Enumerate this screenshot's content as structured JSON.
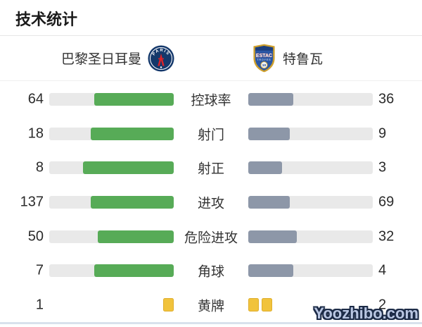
{
  "title": "技术统计",
  "teams": {
    "home": {
      "name": "巴黎圣日耳曼",
      "crest_text_top": "PARIS"
    },
    "away": {
      "name": "特鲁瓦",
      "crest_text_main": "ESTAC",
      "crest_text_sub": "TROYES",
      "crest_number": "10"
    }
  },
  "stats": {
    "rows": [
      {
        "label": "控球率",
        "home": 64,
        "away": 36,
        "display": "bar"
      },
      {
        "label": "射门",
        "home": 18,
        "away": 9,
        "display": "bar"
      },
      {
        "label": "射正",
        "home": 8,
        "away": 3,
        "display": "bar"
      },
      {
        "label": "进攻",
        "home": 137,
        "away": 69,
        "display": "bar"
      },
      {
        "label": "危险进攻",
        "home": 50,
        "away": 32,
        "display": "bar"
      },
      {
        "label": "角球",
        "home": 7,
        "away": 4,
        "display": "bar"
      },
      {
        "label": "黄牌",
        "home": 1,
        "away": 2,
        "display": "cards"
      }
    ]
  },
  "watermark": "Yoozhibo.com",
  "colors": {
    "home_bar": "#57ab57",
    "away_bar": "#8d97a8",
    "track": "#e9e9e9",
    "card_fill": "#f1c33c",
    "card_border": "#dfae2c",
    "watermark_fill": "#b9c6e2",
    "watermark_outline": "#1c2b47"
  },
  "chart_data": {
    "type": "bar",
    "variant": "paired horizontal comparison bars (match stats)",
    "title": "技术统计",
    "categories": [
      "控球率",
      "射门",
      "射正",
      "进攻",
      "危险进攻",
      "角球",
      "黄牌"
    ],
    "series": [
      {
        "name": "巴黎圣日耳曼",
        "color": "#57ab57",
        "values": [
          64,
          18,
          8,
          137,
          50,
          7,
          1
        ]
      },
      {
        "name": "特鲁瓦",
        "color": "#8d97a8",
        "values": [
          36,
          9,
          3,
          69,
          32,
          4,
          2
        ]
      }
    ],
    "legend_position": "top (team names with crests)",
    "notes": "Each bar fill length = value / (home+away); home bars fill right-to-left (inner-anchored), away bars fill left-to-right; 黄牌 (yellow cards) row rendered as yellow card icons instead of bars"
  }
}
